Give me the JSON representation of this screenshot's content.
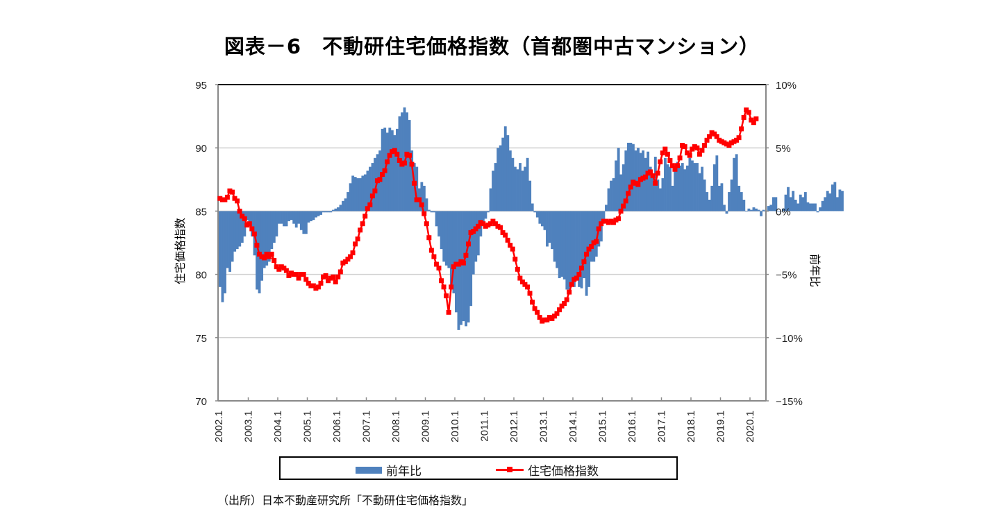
{
  "title": "図表－6　不動研住宅価格指数（首都圏中古マンション）",
  "source": "（出所）日本不動産研究所「不動研住宅価格指数」",
  "legend": {
    "bar_label": "前年比",
    "line_label": "住宅価格指数"
  },
  "colors": {
    "bar": "#4f81bd",
    "line": "#ff0000",
    "grid": "#d0d0d0",
    "axis": "#888888"
  },
  "chart_data": {
    "type": "bar+line",
    "title": "図表－6　不動研住宅価格指数（首都圏中古マンション）",
    "x_start": "2002.1",
    "x_frequency": "monthly",
    "x_tick_labels": [
      "2002.1",
      "2003.1",
      "2004.1",
      "2005.1",
      "2006.1",
      "2007.1",
      "2008.1",
      "2009.1",
      "2010.1",
      "2011.1",
      "2012.1",
      "2013.1",
      "2014.1",
      "2015.1",
      "2016.1",
      "2017.1",
      "2018.1",
      "2019.1",
      "2020.1"
    ],
    "y_left": {
      "label": "住宅価格指数",
      "min": 70,
      "max": 95,
      "ticks": [
        "70",
        "75",
        "80",
        "85",
        "90",
        "95"
      ]
    },
    "y_right": {
      "label": "前年比",
      "min": -15,
      "max": 10,
      "ticks": [
        "−15%",
        "−10%",
        "−5%",
        "0%",
        "5%",
        "10%"
      ]
    },
    "grid": true,
    "legend_position": "bottom",
    "series": [
      {
        "name": "前年比",
        "type": "bar",
        "axis": "right",
        "unit": "%",
        "values": [
          -6.0,
          -7.2,
          -6.5,
          -4.5,
          -4.8,
          -4.0,
          -3.2,
          -3.0,
          -2.8,
          -2.5,
          -2.0,
          -0.7,
          -1.2,
          -2.0,
          -3.5,
          -6.2,
          -6.5,
          -5.5,
          -4.5,
          -4.3,
          -4.0,
          -3.0,
          -2.5,
          -2.0,
          -1.0,
          -1.0,
          -1.2,
          -1.2,
          -0.8,
          -0.7,
          -1.0,
          -1.3,
          -1.0,
          -1.5,
          -1.8,
          -1.8,
          -0.9,
          -0.8,
          -0.7,
          -0.5,
          -0.4,
          -0.3,
          -0.1,
          -0.1,
          -0.1,
          -0.1,
          0.1,
          0.2,
          0.3,
          0.5,
          0.8,
          1.0,
          1.5,
          2.2,
          2.8,
          2.7,
          2.6,
          2.6,
          2.8,
          2.9,
          3.2,
          3.5,
          3.8,
          4.2,
          4.5,
          4.8,
          6.5,
          6.6,
          6.2,
          6.6,
          6.4,
          6.0,
          6.5,
          7.5,
          7.8,
          8.2,
          7.8,
          7.2,
          4.8,
          3.8,
          3.5,
          1.8,
          2.3,
          2.0,
          1.0,
          0.1,
          -0.1,
          -0.1,
          -1.2,
          -2.0,
          -3.0,
          -4.0,
          -4.3,
          -4.5,
          -6.2,
          -6.5,
          -8.0,
          -9.4,
          -9.0,
          -8.7,
          -9.1,
          -8.8,
          -7.5,
          -5.0,
          -4.0,
          -3.5,
          -2.0,
          -1.0,
          -0.6,
          -0.1,
          1.8,
          3.2,
          3.8,
          5.0,
          5.2,
          5.8,
          6.7,
          6.0,
          4.8,
          4.2,
          3.5,
          3.3,
          3.8,
          3.2,
          3.5,
          4.2,
          2.4,
          0.6,
          -0.1,
          -0.5,
          -1.0,
          -1.2,
          -1.5,
          -2.8,
          -2.5,
          -3.0,
          -4.0,
          -4.5,
          -5.3,
          -5.2,
          -5.4,
          -6.2,
          -6.2,
          -5.8,
          -6.0,
          -5.5,
          -6.0,
          -6.1,
          -5.3,
          -6.7,
          -6.0,
          -4.0,
          -4.0,
          -3.6,
          -2.8,
          -2.4,
          -1.0,
          0.5,
          1.8,
          2.4,
          2.6,
          4.0,
          5.0,
          2.9,
          3.7,
          4.8,
          5.4,
          5.4,
          5.3,
          4.8,
          5.0,
          4.6,
          4.8,
          4.2,
          4.7,
          3.5,
          2.7,
          4.3,
          2.5,
          1.8,
          2.6,
          4.2,
          3.7,
          3.5,
          2.0,
          3.6,
          3.9,
          3.6,
          3.8,
          3.3,
          3.6,
          4.2,
          4.0,
          3.8,
          3.8,
          3.0,
          3.5,
          2.5,
          1.5,
          0.9,
          2.0,
          3.7,
          4.4,
          2.0,
          2.2,
          0.5,
          -0.2,
          1.5,
          2.5,
          4.2,
          4.5,
          2.0,
          1.5,
          0.9,
          0.0,
          0.2,
          0.1,
          0.3,
          0.2,
          0.1,
          -0.4,
          0.1,
          0.0,
          0.4,
          0.5,
          1.1,
          1.1,
          0.0,
          0.0,
          0.2,
          1.3,
          1.9,
          1.1,
          1.6,
          0.9,
          0.6,
          1.3,
          1.1,
          1.5,
          0.7,
          0.6,
          0.6,
          0.6,
          -0.1,
          0.3,
          0.8,
          1.1,
          1.6,
          1.4,
          2.1,
          2.3,
          1.1,
          1.7,
          1.6
        ]
      },
      {
        "name": "住宅価格指数",
        "type": "line",
        "axis": "left",
        "values": [
          86.0,
          85.9,
          85.9,
          86.1,
          86.6,
          86.5,
          86.0,
          85.8,
          85.0,
          84.6,
          84.4,
          83.9,
          84.0,
          83.6,
          83.2,
          82.3,
          81.6,
          81.4,
          81.3,
          81.6,
          81.4,
          81.6,
          81.1,
          80.6,
          80.4,
          80.6,
          80.5,
          80.3,
          79.9,
          80.1,
          80.0,
          80.0,
          79.7,
          80.0,
          80.0,
          79.6,
          79.3,
          79.1,
          79.1,
          78.9,
          79.0,
          79.3,
          79.8,
          79.9,
          79.5,
          79.7,
          79.8,
          79.4,
          79.8,
          80.2,
          80.9,
          81.0,
          81.2,
          81.4,
          81.7,
          82.4,
          82.8,
          83.5,
          84.0,
          84.6,
          85.2,
          85.5,
          86.2,
          86.6,
          87.4,
          87.5,
          87.9,
          88.2,
          88.9,
          89.4,
          89.7,
          89.8,
          89.5,
          89.0,
          88.7,
          88.8,
          89.5,
          89.4,
          88.7,
          87.2,
          85.9,
          85.9,
          85.5,
          84.8,
          84.0,
          82.9,
          81.9,
          81.4,
          80.8,
          80.5,
          79.5,
          79.0,
          78.3,
          77.0,
          79.0,
          80.6,
          80.8,
          80.8,
          81.0,
          80.9,
          81.5,
          82.4,
          83.3,
          83.4,
          83.6,
          83.8,
          84.1,
          84.0,
          83.8,
          83.9,
          84.0,
          84.2,
          84.0,
          83.8,
          83.7,
          83.3,
          83.1,
          82.7,
          82.3,
          82.0,
          81.2,
          80.4,
          79.7,
          79.4,
          79.2,
          79.0,
          78.5,
          77.8,
          77.3,
          77.0,
          76.6,
          76.3,
          76.4,
          76.4,
          76.6,
          76.5,
          76.7,
          76.9,
          77.2,
          77.5,
          77.7,
          78.0,
          78.6,
          79.2,
          79.6,
          79.7,
          80.0,
          80.5,
          81.0,
          81.6,
          82.0,
          82.2,
          82.5,
          82.6,
          83.6,
          84.0,
          84.2,
          84.2,
          84.1,
          84.2,
          84.1,
          84.3,
          84.4,
          85.0,
          85.4,
          85.8,
          86.4,
          86.9,
          87.3,
          87.2,
          87.1,
          87.5,
          87.6,
          87.7,
          88.0,
          88.1,
          87.8,
          87.2,
          88.0,
          88.9,
          89.6,
          89.9,
          89.5,
          89.0,
          88.6,
          88.3,
          88.6,
          89.2,
          90.2,
          90.1,
          89.6,
          89.4,
          89.9,
          90.1,
          90.0,
          89.5,
          89.8,
          90.2,
          90.6,
          90.9,
          91.2,
          91.1,
          90.9,
          90.6,
          90.5,
          90.4,
          90.3,
          90.2,
          90.4,
          90.5,
          90.6,
          90.8,
          91.5,
          92.4,
          93.0,
          92.8,
          92.2,
          92.0,
          92.3
        ]
      }
    ]
  }
}
